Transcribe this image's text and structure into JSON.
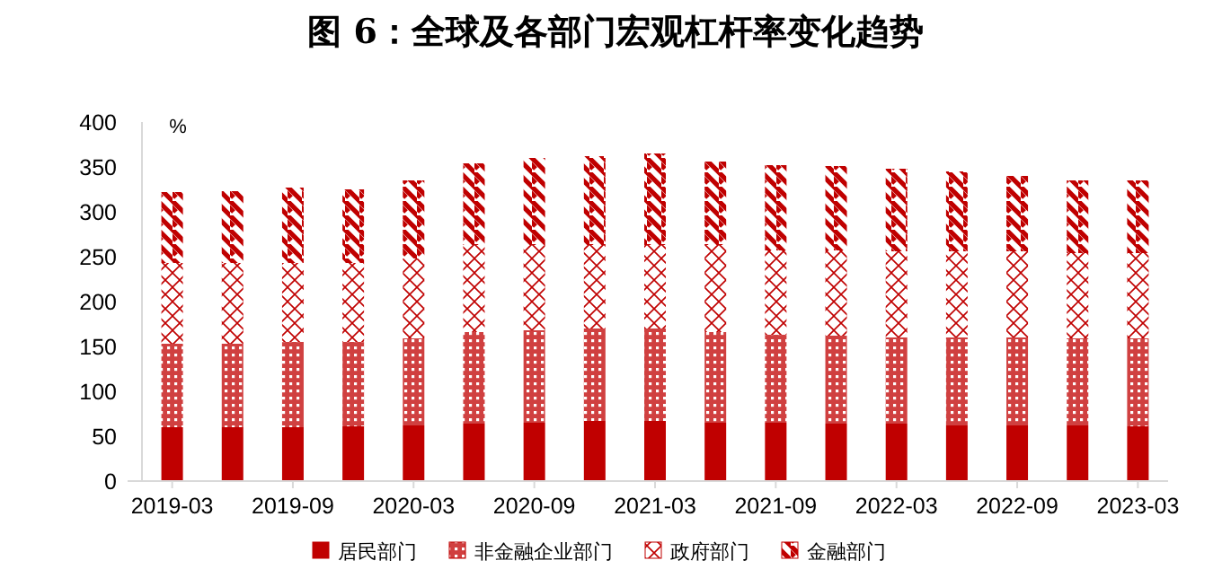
{
  "chart_data": {
    "type": "bar",
    "stacked": true,
    "title": "图 6：全球及各部门宏观杠杆率变化趋势",
    "ylabel": "%",
    "categories": [
      "2019-03",
      null,
      "2019-09",
      null,
      "2020-03",
      null,
      "2020-09",
      null,
      "2021-03",
      null,
      "2021-09",
      null,
      "2022-03",
      null,
      "2022-09",
      null,
      "2023-03"
    ],
    "series": [
      {
        "name": "居民部门",
        "color": "#c00000",
        "values": [
          60,
          60,
          60,
          61,
          62,
          64,
          65,
          67,
          67,
          65,
          65,
          64,
          64,
          62,
          62,
          62,
          61
        ]
      },
      {
        "name": "非金融企业部门",
        "color": "#c00000",
        "values": [
          93,
          93,
          95,
          94,
          97,
          102,
          103,
          103,
          103,
          101,
          98,
          98,
          96,
          98,
          98,
          97,
          98
        ]
      },
      {
        "name": "政府部门",
        "color": "#c00000",
        "values": [
          90,
          90,
          88,
          88,
          89,
          97,
          95,
          93,
          93,
          97,
          94,
          95,
          96,
          96,
          96,
          95,
          95
        ]
      },
      {
        "name": "金融部门",
        "color": "#c00000",
        "values": [
          79,
          80,
          84,
          82,
          87,
          91,
          97,
          99,
          102,
          93,
          95,
          94,
          92,
          89,
          84,
          81,
          81
        ]
      }
    ],
    "ylim": [
      0,
      400
    ],
    "yticks": [
      0,
      50,
      100,
      150,
      200,
      250,
      300,
      350,
      400
    ],
    "legend": "bottom"
  }
}
